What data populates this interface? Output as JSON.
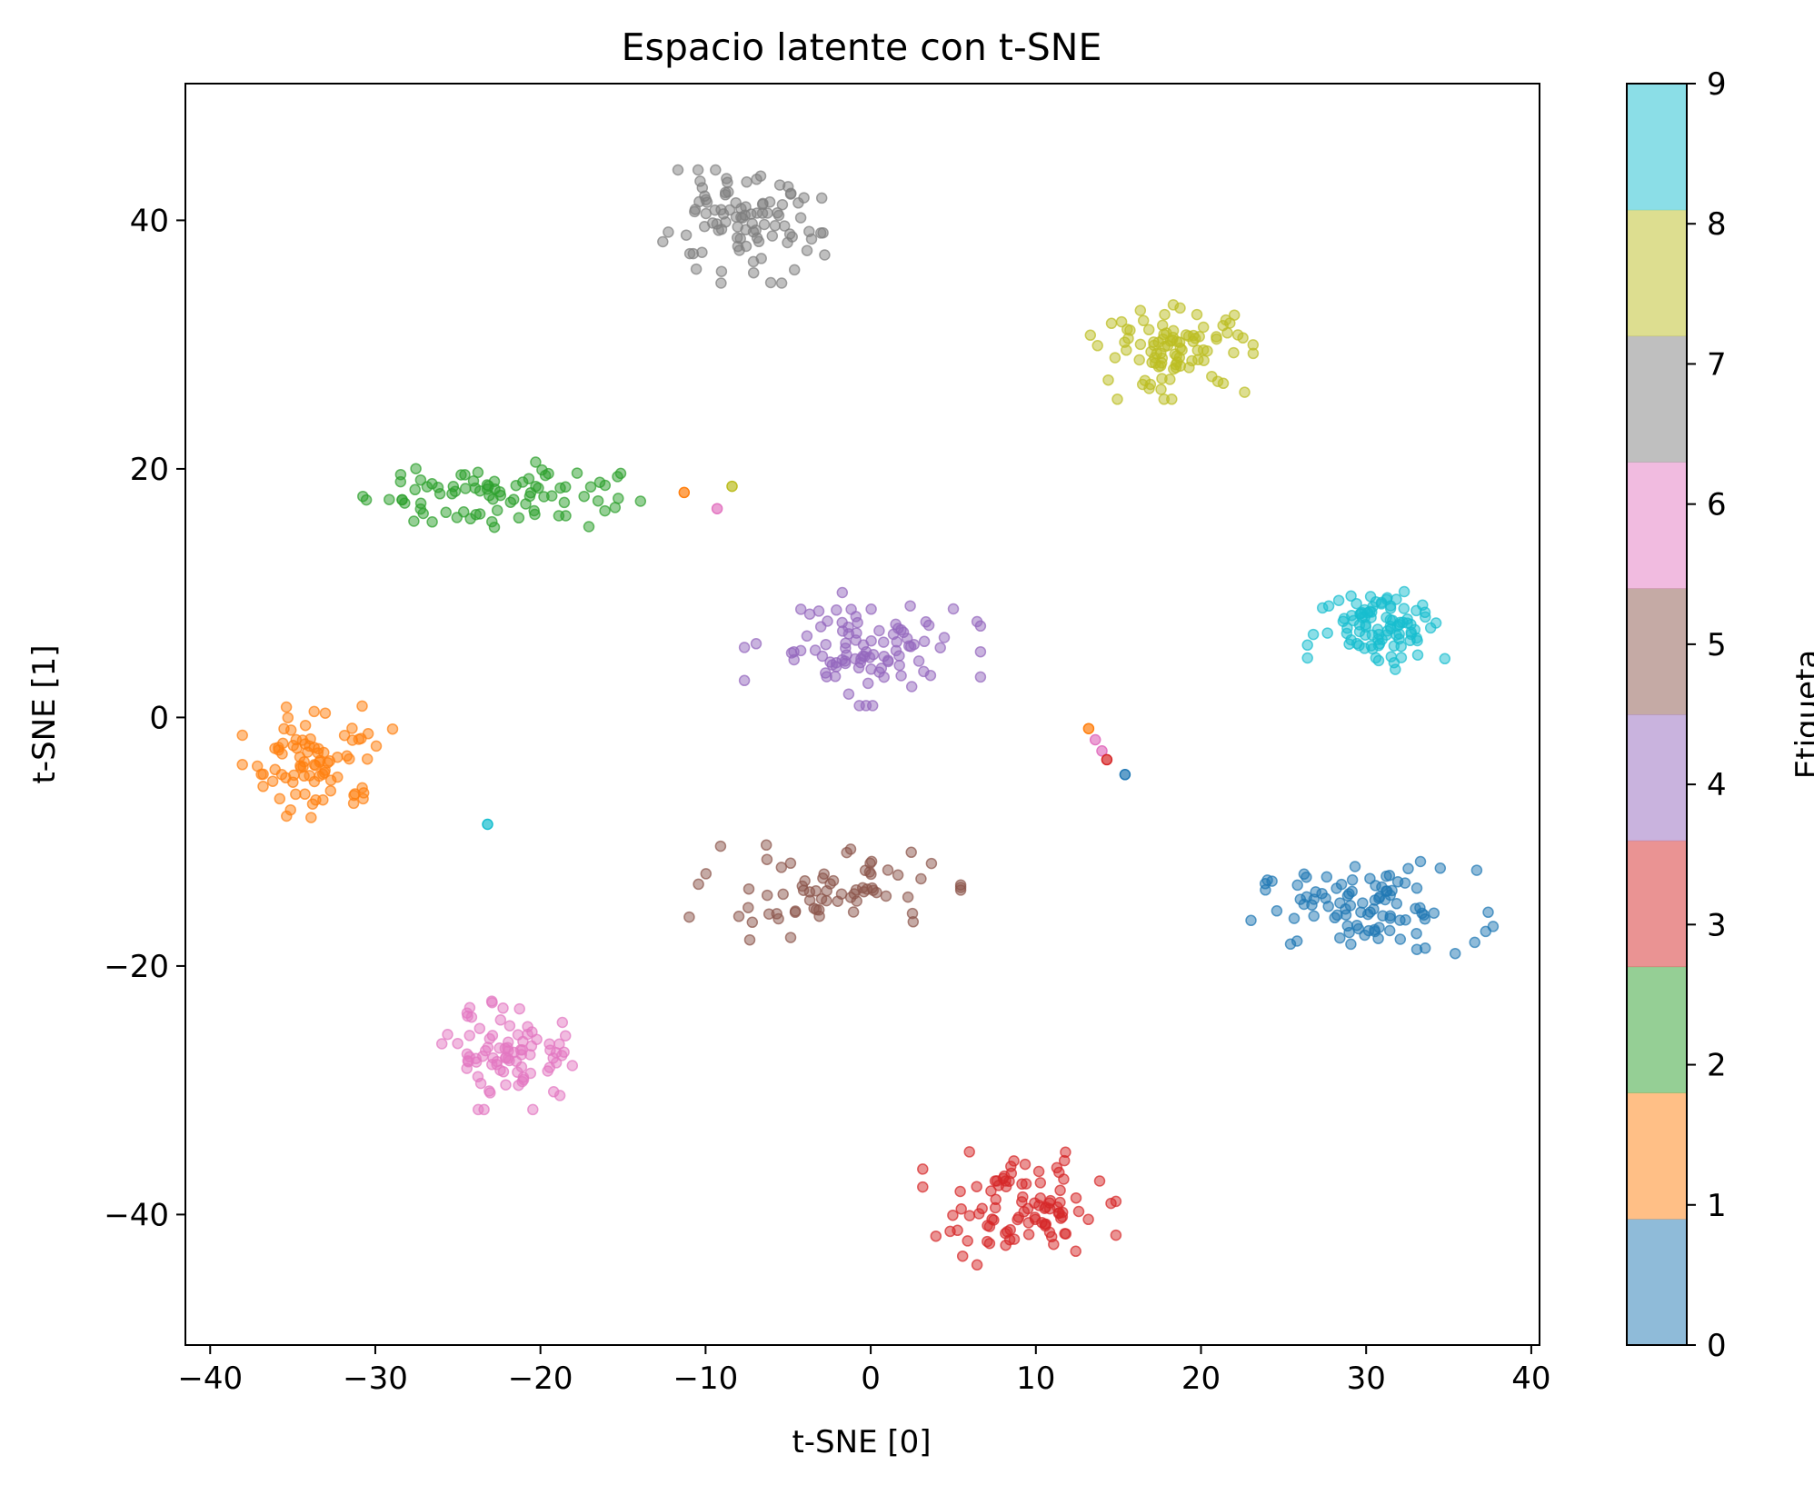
{
  "chart_data": {
    "type": "scatter",
    "title": "Espacio latente con t-SNE",
    "xlabel": "t-SNE [0]",
    "ylabel": "t-SNE [1]",
    "xlim": [
      -41.5,
      40.5
    ],
    "ylim": [
      -50.5,
      51
    ],
    "xticks": [
      -40,
      -30,
      -20,
      -10,
      0,
      10,
      20,
      30,
      40
    ],
    "yticks": [
      -40,
      -20,
      0,
      20,
      40
    ],
    "grid": false,
    "colorbar": {
      "label": "Etiqueta",
      "ticks": [
        0,
        1,
        2,
        3,
        4,
        5,
        6,
        7,
        8,
        9
      ],
      "colors": [
        "#1f77b4",
        "#ff7f0e",
        "#2ca02c",
        "#d62728",
        "#9467bd",
        "#8c564b",
        "#e377c2",
        "#7f7f7f",
        "#bcbd22",
        "#17becf"
      ]
    },
    "point_alpha": 0.5,
    "clusters": [
      {
        "label": 0,
        "center": [
          30.0,
          -15.5
        ],
        "spread": [
          6.0,
          3.0
        ],
        "count": 95
      },
      {
        "label": 1,
        "center": [
          -33.5,
          -3.5
        ],
        "spread": [
          3.5,
          4.0
        ],
        "count": 85
      },
      {
        "label": 2,
        "center": [
          -23.0,
          18.0
        ],
        "spread": [
          7.0,
          2.5
        ],
        "count": 85
      },
      {
        "label": 3,
        "center": [
          9.0,
          -39.5
        ],
        "spread": [
          4.5,
          3.5
        ],
        "count": 95
      },
      {
        "label": 4,
        "center": [
          -0.5,
          5.5
        ],
        "spread": [
          5.5,
          3.5
        ],
        "count": 95
      },
      {
        "label": 5,
        "center": [
          -3.0,
          -14.0
        ],
        "spread": [
          6.5,
          3.0
        ],
        "count": 70
      },
      {
        "label": 6,
        "center": [
          -21.5,
          -27.0
        ],
        "spread": [
          3.5,
          3.5
        ],
        "count": 85
      },
      {
        "label": 7,
        "center": [
          -8.0,
          39.5
        ],
        "spread": [
          4.5,
          3.5
        ],
        "count": 95
      },
      {
        "label": 8,
        "center": [
          18.5,
          29.5
        ],
        "spread": [
          4.0,
          3.0
        ],
        "count": 95
      },
      {
        "label": 9,
        "center": [
          31.0,
          7.5
        ],
        "spread": [
          3.5,
          2.8
        ],
        "count": 95
      }
    ],
    "outliers": [
      {
        "label": 1,
        "x": -11.3,
        "y": 18.1
      },
      {
        "label": 8,
        "x": -8.4,
        "y": 18.6
      },
      {
        "label": 6,
        "x": -9.3,
        "y": 16.8
      },
      {
        "label": 9,
        "x": -23.2,
        "y": -8.6
      },
      {
        "label": 1,
        "x": 13.2,
        "y": -0.9
      },
      {
        "label": 6,
        "x": 13.6,
        "y": -1.8
      },
      {
        "label": 6,
        "x": 14.0,
        "y": -2.7
      },
      {
        "label": 3,
        "x": 14.3,
        "y": -3.4
      },
      {
        "label": 0,
        "x": 15.4,
        "y": -4.6
      }
    ]
  }
}
